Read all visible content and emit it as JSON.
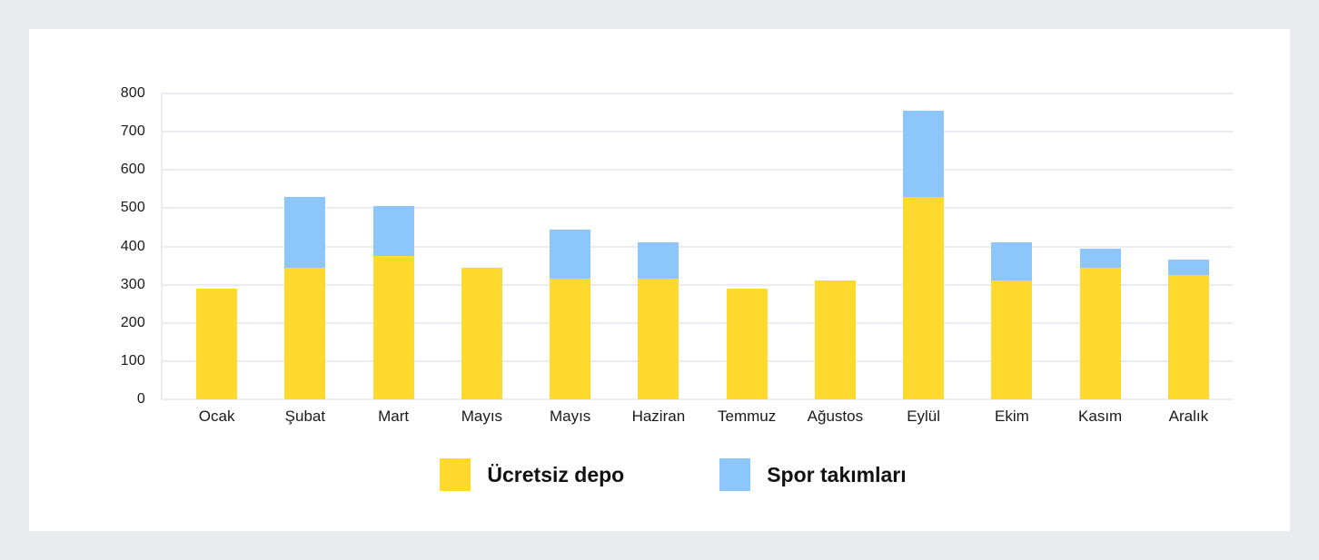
{
  "page": {
    "background_color": "#E9EBEE",
    "card_background": "#FFFFFF"
  },
  "chart_data": {
    "type": "bar",
    "stacked": true,
    "title": "",
    "xlabel": "",
    "ylabel": "",
    "categories": [
      "Ocak",
      "Şubat",
      "Mart",
      "Mayıs",
      "Mayıs",
      "Haziran",
      "Temmuz",
      "Ağustos",
      "Eylül",
      "Ekim",
      "Kasım",
      "Aralık"
    ],
    "series": [
      {
        "name": "Ücretsiz depo",
        "color": "#FFD92E",
        "values": [
          290,
          345,
          375,
          345,
          315,
          315,
          290,
          310,
          530,
          310,
          345,
          325
        ]
      },
      {
        "name": "Spor takımları",
        "color": "#8DC6FA",
        "values": [
          0,
          185,
          130,
          0,
          130,
          95,
          0,
          0,
          225,
          100,
          50,
          40
        ]
      }
    ],
    "totals": [
      290,
      530,
      505,
      345,
      445,
      410,
      290,
      310,
      755,
      410,
      395,
      365
    ],
    "ylim": [
      0,
      800
    ],
    "ytick_step": 100,
    "yticks": [
      "800",
      "700",
      "600",
      "500",
      "400",
      "300",
      "200",
      "100",
      "0"
    ],
    "grid": true,
    "gridline_color": "#EBECF1",
    "axis_text_color": "#1A1A1A",
    "legend_position": "bottom",
    "legend_text_color": "#111111"
  }
}
